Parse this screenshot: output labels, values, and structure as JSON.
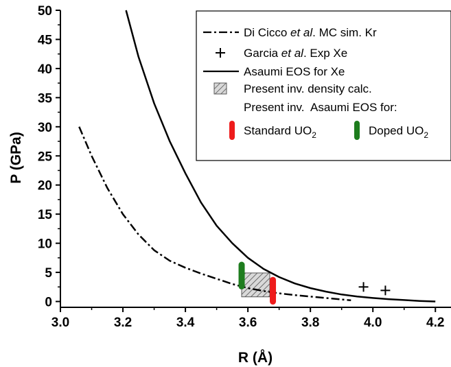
{
  "chart_data": {
    "type": "line",
    "xlabel": "R (Å)",
    "ylabel": "P (GPa)",
    "xlim": [
      3.0,
      4.25
    ],
    "ylim": [
      -1,
      50
    ],
    "x_ticks": [
      "3.0",
      "3.2",
      "3.4",
      "3.6",
      "3.8",
      "4.0",
      "4.2"
    ],
    "y_ticks": [
      "0",
      "5",
      "10",
      "15",
      "20",
      "25",
      "30",
      "35",
      "40",
      "45",
      "50"
    ],
    "grid": false,
    "legend_position": "top-right",
    "series": [
      {
        "name_parts": [
          "Di Cicco ",
          "et al",
          ". MC sim. Kr"
        ],
        "style": "dash-dot",
        "color": "#000000",
        "x": [
          3.06,
          3.1,
          3.15,
          3.2,
          3.25,
          3.3,
          3.35,
          3.4,
          3.45,
          3.5,
          3.55,
          3.6,
          3.65,
          3.7,
          3.75,
          3.8,
          3.85,
          3.9,
          3.93
        ],
        "y": [
          30.0,
          25.0,
          19.5,
          15.0,
          11.5,
          8.8,
          7.0,
          5.8,
          4.8,
          3.9,
          3.0,
          2.3,
          1.8,
          1.4,
          1.1,
          0.85,
          0.6,
          0.35,
          0.2
        ]
      },
      {
        "name_parts": [
          "Garcia ",
          "et al",
          ". Exp Xe"
        ],
        "style": "marker-plus",
        "color": "#000000",
        "x": [
          3.97,
          4.04
        ],
        "y": [
          2.5,
          1.9
        ]
      },
      {
        "name": "Asaumi EOS for Xe",
        "style": "solid",
        "color": "#000000",
        "x": [
          3.21,
          3.25,
          3.3,
          3.35,
          3.4,
          3.45,
          3.5,
          3.55,
          3.6,
          3.65,
          3.7,
          3.75,
          3.8,
          3.85,
          3.9,
          3.95,
          4.0,
          4.05,
          4.1,
          4.15,
          4.2
        ],
        "y": [
          50.0,
          42.0,
          34.0,
          27.5,
          22.0,
          17.0,
          13.0,
          10.0,
          7.5,
          5.6,
          4.2,
          3.1,
          2.3,
          1.7,
          1.2,
          0.85,
          0.6,
          0.4,
          0.25,
          0.1,
          0.0
        ]
      }
    ],
    "shaded_region": {
      "name": "Present inv. density calc.",
      "x_range": [
        3.58,
        3.67
      ],
      "y_range": [
        0.8,
        4.9
      ],
      "fill": "hatched-grey"
    },
    "legend_subheading": "Present inv.  Asaumi EOS for:",
    "bars": [
      {
        "name": "Standard UO",
        "subscript": "2",
        "color": "#ee1c1c",
        "x": 3.68,
        "y_range": [
          0.0,
          3.7
        ]
      },
      {
        "name": "Doped UO",
        "subscript": "2",
        "color": "#1e7d1e",
        "x": 3.58,
        "y_range": [
          2.6,
          6.3
        ]
      }
    ]
  }
}
